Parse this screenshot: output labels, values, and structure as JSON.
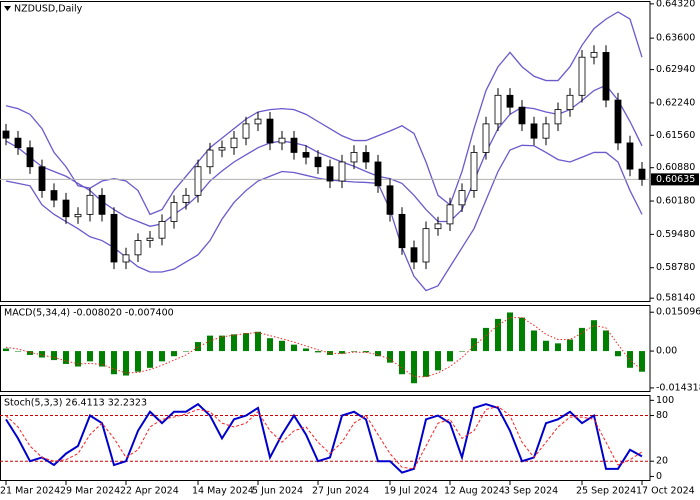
{
  "chart_data": [
    {
      "type": "candlestick",
      "title": "NZDUSD,Daily",
      "color": "#000000",
      "up_fill": "#ffffff",
      "categories": [
        "21 Mar 2024",
        null,
        null,
        null,
        null,
        "29 Mar 2024",
        null,
        null,
        null,
        null,
        "22 Apr 2024",
        null,
        null,
        null,
        null,
        null,
        "14 May 2024",
        null,
        null,
        null,
        null,
        "5 Jun 2024",
        null,
        null,
        null,
        null,
        "27 Jun 2024",
        null,
        null,
        null,
        null,
        null,
        "19 Jul 2024",
        null,
        null,
        null,
        null,
        "12 Aug 2024",
        null,
        null,
        null,
        null,
        "3 Sep 2024",
        null,
        null,
        null,
        null,
        null,
        "25 Sep 2024",
        null,
        null,
        null,
        null,
        "17 Oct 2024"
      ],
      "open": [
        0.6165,
        0.615,
        0.613,
        0.609,
        0.604,
        0.602,
        0.5985,
        0.599,
        0.603,
        0.599,
        0.589,
        0.5905,
        0.5935,
        0.594,
        0.5975,
        0.6015,
        0.603,
        0.609,
        0.6125,
        0.613,
        0.615,
        0.618,
        0.619,
        0.614,
        0.615,
        0.612,
        0.611,
        0.609,
        0.606,
        0.61,
        0.612,
        0.61,
        0.605,
        0.599,
        0.592,
        0.589,
        0.596,
        0.597,
        0.601,
        0.604,
        0.612,
        0.618,
        0.624,
        0.6215,
        0.618,
        0.615,
        0.618,
        0.621,
        0.624,
        0.632,
        0.633,
        0.623,
        0.614,
        0.6085
      ],
      "high": [
        0.618,
        0.6165,
        0.6145,
        0.6105,
        0.6055,
        0.6035,
        0.6005,
        0.6045,
        0.6045,
        0.6005,
        0.592,
        0.595,
        0.5955,
        0.599,
        0.603,
        0.6045,
        0.6105,
        0.614,
        0.6145,
        0.6165,
        0.6195,
        0.6205,
        0.6205,
        0.6165,
        0.6165,
        0.6135,
        0.6125,
        0.6105,
        0.6115,
        0.6135,
        0.6135,
        0.6115,
        0.6065,
        0.6005,
        0.5935,
        0.5975,
        0.5985,
        0.6025,
        0.6055,
        0.6135,
        0.6195,
        0.6255,
        0.6255,
        0.623,
        0.6195,
        0.6195,
        0.6225,
        0.6255,
        0.6335,
        0.6345,
        0.6345,
        0.6245,
        0.6155,
        0.61
      ],
      "low": [
        0.6135,
        0.6115,
        0.6075,
        0.6025,
        0.6005,
        0.597,
        0.597,
        0.5975,
        0.5975,
        0.5875,
        0.5875,
        0.589,
        0.592,
        0.5925,
        0.596,
        0.6,
        0.6015,
        0.6075,
        0.611,
        0.6115,
        0.6135,
        0.6165,
        0.6125,
        0.6125,
        0.6105,
        0.6095,
        0.6075,
        0.6045,
        0.6045,
        0.6085,
        0.6085,
        0.6035,
        0.5975,
        0.5905,
        0.5875,
        0.5875,
        0.5945,
        0.5955,
        0.5995,
        0.6025,
        0.6105,
        0.6165,
        0.62,
        0.6165,
        0.6135,
        0.6135,
        0.6165,
        0.6195,
        0.6225,
        0.6305,
        0.6215,
        0.6125,
        0.607,
        0.605
      ],
      "close": [
        0.615,
        0.613,
        0.609,
        0.604,
        0.602,
        0.5985,
        0.599,
        0.603,
        0.599,
        0.589,
        0.5905,
        0.5935,
        0.594,
        0.5975,
        0.6015,
        0.603,
        0.609,
        0.6125,
        0.613,
        0.615,
        0.618,
        0.619,
        0.614,
        0.615,
        0.612,
        0.611,
        0.609,
        0.606,
        0.61,
        0.612,
        0.61,
        0.605,
        0.599,
        0.592,
        0.589,
        0.596,
        0.597,
        0.601,
        0.604,
        0.612,
        0.618,
        0.624,
        0.6215,
        0.618,
        0.615,
        0.618,
        0.621,
        0.624,
        0.632,
        0.633,
        0.623,
        0.614,
        0.6085,
        0.60635
      ],
      "bands": [
        {
          "color": "#6a5acd",
          "values": [
            0.6218,
            0.6212,
            0.62,
            0.617,
            0.612,
            0.609,
            0.605,
            0.6045,
            0.606,
            0.6065,
            0.606,
            0.604,
            0.599,
            0.6,
            0.604,
            0.607,
            0.61,
            0.613,
            0.615,
            0.617,
            0.619,
            0.6205,
            0.621,
            0.6212,
            0.621,
            0.62,
            0.6185,
            0.617,
            0.6155,
            0.6145,
            0.6145,
            0.6155,
            0.6165,
            0.6176,
            0.616,
            0.61,
            0.603,
            0.601,
            0.608,
            0.617,
            0.625,
            0.63,
            0.633,
            0.63,
            0.628,
            0.6271,
            0.6271,
            0.63,
            0.6345,
            0.638,
            0.64,
            0.6415,
            0.64,
            0.632
          ]
        },
        {
          "color": "#6a5acd",
          "values": [
            0.6144,
            0.613,
            0.611,
            0.609,
            0.608,
            0.607,
            0.6055,
            0.604,
            0.6017,
            0.6,
            0.5985,
            0.5975,
            0.5965,
            0.597,
            0.599,
            0.6007,
            0.603,
            0.606,
            0.6081,
            0.61,
            0.6115,
            0.613,
            0.614,
            0.6144,
            0.614,
            0.6134,
            0.612,
            0.611,
            0.61,
            0.6091,
            0.608,
            0.607,
            0.6065,
            0.6055,
            0.603,
            0.6,
            0.5975,
            0.5975,
            0.6,
            0.606,
            0.612,
            0.617,
            0.62,
            0.6215,
            0.6212,
            0.6205,
            0.62,
            0.621,
            0.6229,
            0.625,
            0.6261,
            0.623,
            0.6185,
            0.6134
          ]
        },
        {
          "color": "#6a5acd",
          "values": [
            0.606,
            0.6055,
            0.605,
            0.601,
            0.599,
            0.5975,
            0.596,
            0.5943,
            0.5935,
            0.592,
            0.59,
            0.588,
            0.5869,
            0.5869,
            0.5875,
            0.589,
            0.5905,
            0.5935,
            0.598,
            0.6015,
            0.604,
            0.606,
            0.607,
            0.608,
            0.6078,
            0.6072,
            0.6066,
            0.6062,
            0.606,
            0.6058,
            0.6057,
            0.6055,
            0.6,
            0.592,
            0.586,
            0.583,
            0.584,
            0.588,
            0.592,
            0.596,
            0.602,
            0.608,
            0.6125,
            0.6135,
            0.6134,
            0.612,
            0.6105,
            0.61,
            0.611,
            0.612,
            0.612,
            0.61,
            0.604,
            0.599
          ]
        }
      ],
      "current_price": {
        "value": 0.60635,
        "label": "0.60635"
      },
      "ylim": [
        0.5806,
        0.6438
      ],
      "yticks": [
        {
          "value": 0.6432,
          "label": "0.64320"
        },
        {
          "value": 0.636,
          "label": "0.63600"
        },
        {
          "value": 0.6294,
          "label": "0.62940"
        },
        {
          "value": 0.6224,
          "label": "0.62240"
        },
        {
          "value": 0.6156,
          "label": "0.61560"
        },
        {
          "value": 0.6088,
          "label": "0.60880"
        },
        {
          "value": 0.6018,
          "label": "0.60180"
        },
        {
          "value": 0.5948,
          "label": "0.59480"
        },
        {
          "value": 0.5878,
          "label": "0.58780"
        },
        {
          "value": 0.5814,
          "label": "0.58140"
        }
      ]
    },
    {
      "type": "macd",
      "title": "MACD(5,34,4) -0.008020 -0.007400",
      "series": [
        {
          "style": "histogram",
          "color": "#008000",
          "values": [
            0.001,
            0.0,
            -0.0015,
            -0.0025,
            -0.0035,
            -0.005,
            -0.006,
            -0.004,
            -0.006,
            -0.009,
            -0.0095,
            -0.008,
            -0.0065,
            -0.004,
            -0.002,
            0.0,
            0.0035,
            0.006,
            0.006,
            0.0065,
            0.007,
            0.0075,
            0.005,
            0.004,
            0.0025,
            0.001,
            -0.0005,
            -0.0015,
            -0.001,
            0.0,
            -0.0005,
            -0.002,
            -0.0045,
            -0.009,
            -0.0125,
            -0.01,
            -0.0075,
            -0.004,
            0.0,
            0.005,
            0.009,
            0.0125,
            0.015,
            0.013,
            0.008,
            0.004,
            0.003,
            0.0045,
            0.009,
            0.012,
            0.008,
            -0.002,
            -0.0065,
            -0.00802
          ]
        },
        {
          "style": "dotted",
          "color": "#ff2020",
          "values": [
            0.0015,
            0.0008,
            -0.0005,
            -0.0015,
            -0.0025,
            -0.0038,
            -0.005,
            -0.0048,
            -0.0052,
            -0.007,
            -0.0085,
            -0.0083,
            -0.0072,
            -0.0055,
            -0.0035,
            -0.0015,
            0.0015,
            0.004,
            0.0055,
            0.0062,
            0.0068,
            0.0072,
            0.006,
            0.0048,
            0.0035,
            0.002,
            0.0005,
            -0.0008,
            -0.001,
            -0.0004,
            -0.0005,
            -0.0014,
            -0.0032,
            -0.0065,
            -0.01,
            -0.01,
            -0.0085,
            -0.006,
            -0.0025,
            0.002,
            0.006,
            0.01,
            0.013,
            0.013,
            0.01,
            0.0065,
            0.0045,
            0.0045,
            0.007,
            0.01,
            0.009,
            0.0025,
            -0.0035,
            -0.0074
          ]
        }
      ],
      "ylim": [
        -0.0159,
        0.0179
      ],
      "yticks": [
        0.015096,
        {
          "value": 0,
          "label": "0.00"
        },
        -0.014318
      ]
    },
    {
      "type": "stochastic",
      "title": "Stoch(5,3,3) 26.4113 32.2323",
      "series": [
        {
          "style": "line",
          "color": "#0000cc",
          "values": [
            75,
            50,
            20,
            25,
            15,
            30,
            40,
            80,
            70,
            15,
            20,
            60,
            85,
            70,
            85,
            85,
            95,
            80,
            50,
            75,
            80,
            90,
            25,
            55,
            80,
            55,
            20,
            25,
            80,
            85,
            75,
            20,
            20,
            5,
            10,
            75,
            80,
            70,
            25,
            90,
            95,
            90,
            60,
            20,
            25,
            70,
            75,
            85,
            70,
            80,
            10,
            10,
            35,
            26.4113
          ]
        },
        {
          "style": "dashed",
          "color": "#ff2020",
          "values": [
            80,
            65,
            40,
            25,
            20,
            22,
            30,
            55,
            70,
            50,
            25,
            35,
            65,
            75,
            78,
            82,
            88,
            85,
            70,
            65,
            70,
            85,
            60,
            45,
            60,
            65,
            45,
            30,
            45,
            70,
            80,
            55,
            30,
            12,
            10,
            40,
            70,
            75,
            50,
            60,
            88,
            92,
            80,
            45,
            25,
            45,
            65,
            78,
            78,
            75,
            45,
            15,
            22,
            32.2323
          ]
        }
      ],
      "levels": [
        80,
        20
      ],
      "level_color": "#cc0000",
      "ylim": [
        -6,
        107
      ],
      "yticks": [
        100,
        80,
        20,
        0
      ]
    }
  ]
}
